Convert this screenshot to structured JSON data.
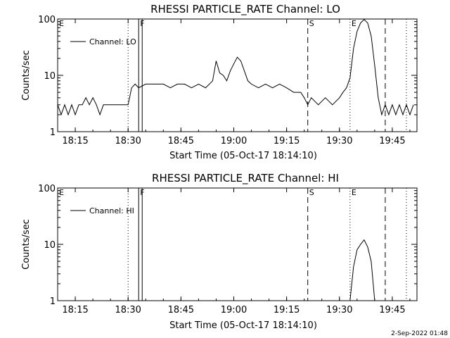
{
  "footer": {
    "timestamp": "2-Sep-2022 01:48"
  },
  "chart_data": [
    {
      "type": "line",
      "title": "RHESSI PARTICLE_RATE Channel: LO",
      "xlabel": "Start Time (05-Oct-17 18:14:10)",
      "ylabel": "Counts/sec",
      "y_scale": "log",
      "ylim": [
        1,
        100
      ],
      "xlim": [
        "18:10",
        "17:52"
      ],
      "x_tick_labels": [
        "18:15",
        "18:30",
        "18:45",
        "19:00",
        "19:15",
        "19:30",
        "19:45"
      ],
      "y_tick_labels": [
        "1",
        "10",
        "100"
      ],
      "legend": {
        "position": "top-left",
        "entries": [
          "Channel: LO"
        ]
      },
      "flags": [
        {
          "label": "E",
          "time": "18:10",
          "style": "none"
        },
        {
          "label": "F",
          "time": "18:33",
          "style": "solid"
        },
        {
          "label": "",
          "time": "18:34",
          "style": "solid"
        },
        {
          "label": "",
          "time": "18:30",
          "style": "dotted"
        },
        {
          "label": "S",
          "time": "19:21",
          "style": "dashed"
        },
        {
          "label": "E",
          "time": "19:33",
          "style": "dotted"
        },
        {
          "label": "",
          "time": "19:43",
          "style": "dashed"
        },
        {
          "label": "",
          "time": "19:49",
          "style": "dotted"
        }
      ],
      "series": [
        {
          "name": "Channel: LO",
          "points": [
            [
              "18:10",
              3
            ],
            [
              "18:11",
              2
            ],
            [
              "18:12",
              3
            ],
            [
              "18:13",
              2
            ],
            [
              "18:14",
              3
            ],
            [
              "18:15",
              2
            ],
            [
              "18:16",
              3
            ],
            [
              "18:17",
              3
            ],
            [
              "18:18",
              4
            ],
            [
              "18:19",
              3
            ],
            [
              "18:20",
              4
            ],
            [
              "18:21",
              3
            ],
            [
              "18:22",
              2
            ],
            [
              "18:23",
              3
            ],
            [
              "18:24",
              3
            ],
            [
              "18:25",
              3
            ],
            [
              "18:27",
              3
            ],
            [
              "18:29",
              3
            ],
            [
              "18:30",
              3
            ],
            [
              "18:31",
              6
            ],
            [
              "18:32",
              7
            ],
            [
              "18:33",
              6
            ],
            [
              "18:35",
              7
            ],
            [
              "18:37",
              7
            ],
            [
              "18:40",
              7
            ],
            [
              "18:42",
              6
            ],
            [
              "18:44",
              7
            ],
            [
              "18:46",
              7
            ],
            [
              "18:48",
              6
            ],
            [
              "18:50",
              7
            ],
            [
              "18:52",
              6
            ],
            [
              "18:54",
              8
            ],
            [
              "18:55",
              18
            ],
            [
              "18:56",
              11
            ],
            [
              "18:57",
              10
            ],
            [
              "18:58",
              8
            ],
            [
              "18:59",
              12
            ],
            [
              "19:00",
              16
            ],
            [
              "19:01",
              21
            ],
            [
              "19:02",
              18
            ],
            [
              "19:03",
              12
            ],
            [
              "19:04",
              8
            ],
            [
              "19:05",
              7
            ],
            [
              "19:07",
              6
            ],
            [
              "19:09",
              7
            ],
            [
              "19:11",
              6
            ],
            [
              "19:13",
              7
            ],
            [
              "19:15",
              6
            ],
            [
              "19:17",
              5
            ],
            [
              "19:19",
              5
            ],
            [
              "19:20",
              4
            ],
            [
              "19:21",
              3
            ],
            [
              "19:22",
              4
            ],
            [
              "19:24",
              3
            ],
            [
              "19:26",
              4
            ],
            [
              "19:28",
              3
            ],
            [
              "19:30",
              4
            ],
            [
              "19:31",
              5
            ],
            [
              "19:32",
              6
            ],
            [
              "19:33",
              9
            ],
            [
              "19:34",
              30
            ],
            [
              "19:35",
              60
            ],
            [
              "19:36",
              85
            ],
            [
              "19:37",
              98
            ],
            [
              "19:38",
              85
            ],
            [
              "19:39",
              50
            ],
            [
              "19:40",
              15
            ],
            [
              "19:41",
              4
            ],
            [
              "19:42",
              2
            ],
            [
              "19:43",
              3
            ],
            [
              "19:44",
              2
            ],
            [
              "19:45",
              3
            ],
            [
              "19:46",
              2
            ],
            [
              "19:47",
              3
            ],
            [
              "19:48",
              2
            ],
            [
              "19:49",
              3
            ],
            [
              "19:50",
              2
            ],
            [
              "19:51",
              3
            ]
          ]
        }
      ]
    },
    {
      "type": "line",
      "title": "RHESSI PARTICLE_RATE Channel: HI",
      "xlabel": "Start Time (05-Oct-17 18:14:10)",
      "ylabel": "Counts/sec",
      "y_scale": "log",
      "ylim": [
        1,
        100
      ],
      "xlim": [
        "18:10",
        "17:52"
      ],
      "x_tick_labels": [
        "18:15",
        "18:30",
        "18:45",
        "19:00",
        "19:15",
        "19:30",
        "19:45"
      ],
      "y_tick_labels": [
        "1",
        "10",
        "100"
      ],
      "legend": {
        "position": "top-left",
        "entries": [
          "Channel: HI"
        ]
      },
      "flags": [
        {
          "label": "E",
          "time": "18:10",
          "style": "none"
        },
        {
          "label": "F",
          "time": "18:33",
          "style": "solid"
        },
        {
          "label": "",
          "time": "18:34",
          "style": "solid"
        },
        {
          "label": "",
          "time": "18:30",
          "style": "dotted"
        },
        {
          "label": "S",
          "time": "19:21",
          "style": "dashed"
        },
        {
          "label": "E",
          "time": "19:33",
          "style": "dotted"
        },
        {
          "label": "",
          "time": "19:43",
          "style": "dashed"
        },
        {
          "label": "",
          "time": "19:49",
          "style": "dotted"
        }
      ],
      "series": [
        {
          "name": "Channel: HI",
          "points": [
            [
              "19:33",
              1
            ],
            [
              "19:34",
              4
            ],
            [
              "19:35",
              8
            ],
            [
              "19:36",
              10
            ],
            [
              "19:37",
              12
            ],
            [
              "19:38",
              9
            ],
            [
              "19:39",
              5
            ],
            [
              "19:40",
              1
            ]
          ]
        }
      ]
    }
  ]
}
